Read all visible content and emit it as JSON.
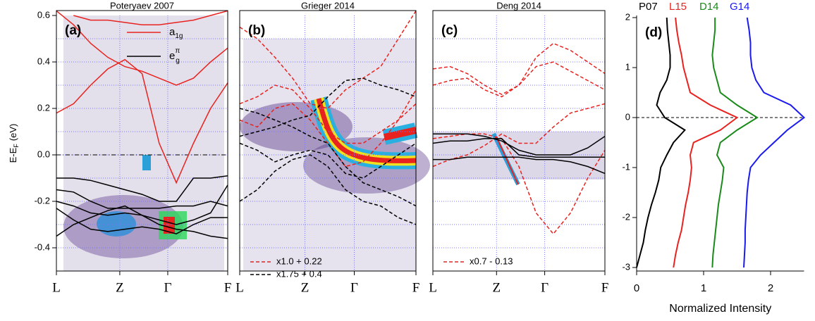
{
  "chart_data": [
    {
      "type": "line",
      "title": "Poteryaev 2007",
      "panel_label": "(a)",
      "ylabel": "E-E",
      "ylabel_sub": "F",
      "ylabel_unit": "(eV)",
      "xlim": [
        0,
        1
      ],
      "ylim": [
        -0.5,
        0.6
      ],
      "xticks": [
        {
          "value": 0,
          "label": "L"
        },
        {
          "value": 0.37,
          "label": "Z"
        },
        {
          "value": 0.65,
          "label": "Γ"
        },
        {
          "value": 1,
          "label": "F"
        }
      ],
      "yticks": [
        -0.4,
        -0.2,
        {
          "value": 0,
          "label": "0.0"
        },
        0.2,
        0.4,
        0.6
      ],
      "ygrid": [
        -0.4,
        -0.3,
        -0.2,
        -0.1,
        0,
        0.1,
        0.2,
        0.3,
        0.4,
        0.5
      ],
      "grid": true,
      "hline": 0,
      "x": [
        0,
        0.1,
        0.2,
        0.3,
        0.4,
        0.5,
        0.6,
        0.7,
        0.8,
        0.9,
        1
      ],
      "series": [
        {
          "name": "a",
          "name_sub": "1g",
          "color": "#e8231f",
          "dash": false,
          "values": [
            [
              0.18,
              0.22,
              0.3,
              0.37,
              0.41,
              0.35,
              0.05,
              -0.12,
              0.05,
              0.2,
              0.31
            ],
            [
              0.62,
              0.56,
              0.48,
              0.42,
              0.38,
              0.36,
              0.33,
              0.3,
              0.33,
              0.4,
              0.46
            ],
            [
              null,
              0.6,
              0.58,
              0.58,
              0.57,
              0.56,
              0.56,
              0.57,
              0.58,
              0.6,
              0.62
            ]
          ]
        },
        {
          "name": "e",
          "name_sub": "g",
          "name_sup": "π",
          "color": "#000000",
          "dash": false,
          "values": [
            [
              -0.1,
              -0.1,
              -0.11,
              -0.13,
              -0.15,
              -0.17,
              -0.2,
              -0.2,
              -0.1,
              -0.1,
              -0.09
            ],
            [
              -0.15,
              -0.16,
              -0.2,
              -0.23,
              -0.23,
              -0.23,
              -0.23,
              -0.22,
              -0.22,
              -0.2,
              -0.22
            ],
            [
              -0.2,
              -0.22,
              -0.25,
              -0.26,
              -0.25,
              -0.26,
              -0.28,
              -0.3,
              -0.28,
              -0.25,
              -0.13
            ],
            [
              -0.35,
              -0.3,
              -0.27,
              -0.24,
              -0.22,
              -0.26,
              -0.3,
              -0.32,
              -0.33,
              -0.35,
              -0.36
            ],
            [
              -0.23,
              -0.28,
              -0.32,
              -0.33,
              -0.32,
              -0.31,
              -0.32,
              -0.34,
              -0.3,
              -0.27,
              -0.27
            ]
          ]
        }
      ]
    },
    {
      "type": "line",
      "title": "Grieger 2014",
      "panel_label": "(b)",
      "xlim": [
        0,
        1
      ],
      "ylim": [
        -0.5,
        0.6
      ],
      "xticks": [
        {
          "value": 0,
          "label": "L"
        },
        {
          "value": 0.37,
          "label": "Z"
        },
        {
          "value": 0.65,
          "label": "Γ"
        },
        {
          "value": 1,
          "label": "F"
        }
      ],
      "ygrid": [
        -0.4,
        -0.3,
        -0.2,
        -0.1,
        0,
        0.1,
        0.2,
        0.3,
        0.4,
        0.5
      ],
      "grid": true,
      "x": [
        0,
        0.1,
        0.2,
        0.3,
        0.4,
        0.5,
        0.6,
        0.7,
        0.8,
        0.9,
        1
      ],
      "series": [
        {
          "name": "x1.0 + 0.22",
          "color": "#e8231f",
          "dash": true,
          "values": [
            [
              0.55,
              0.5,
              0.42,
              0.33,
              0.22,
              0.2,
              0.28,
              0.33,
              0.38,
              0.5,
              0.62
            ],
            [
              0.22,
              0.25,
              0.3,
              0.28,
              0.2,
              0.1,
              0.05,
              0.05,
              0.1,
              0.15,
              0.22
            ],
            [
              0.15,
              0.12,
              0.2,
              0.22,
              0.15,
              0.05,
              -0.05,
              -0.03,
              0.05,
              0.15,
              0.28
            ]
          ]
        },
        {
          "name": "x1.75 + 0.4",
          "color": "#000000",
          "dash": true,
          "values": [
            [
              0.08,
              0.1,
              0.12,
              0.15,
              0.17,
              0.25,
              0.32,
              0.33,
              0.3,
              0.28,
              0.25
            ],
            [
              0.05,
              0.02,
              -0.03,
              0,
              0.02,
              0,
              -0.08,
              -0.1,
              -0.05,
              0,
              0.05
            ],
            [
              -0.2,
              -0.15,
              -0.07,
              -0.02,
              0,
              -0.05,
              -0.15,
              -0.2,
              -0.22,
              -0.27,
              -0.3
            ],
            [
              0.2,
              0.18,
              0.15,
              0.12,
              0.08,
              0.05,
              -0.05,
              -0.12,
              -0.15,
              -0.18,
              -0.22
            ]
          ]
        }
      ]
    },
    {
      "type": "line",
      "title": "Deng 2014",
      "panel_label": "(c)",
      "xlim": [
        0,
        1
      ],
      "ylim": [
        -0.5,
        0.6
      ],
      "xticks": [
        {
          "value": 0,
          "label": "L"
        },
        {
          "value": 0.37,
          "label": "Z"
        },
        {
          "value": 0.65,
          "label": "Γ"
        },
        {
          "value": 1,
          "label": "F"
        }
      ],
      "ygrid": [
        -0.4,
        -0.3,
        -0.2,
        -0.1,
        0,
        0.1,
        0.2,
        0.3,
        0.4,
        0.5
      ],
      "grid": true,
      "x": [
        0,
        0.1,
        0.2,
        0.3,
        0.4,
        0.5,
        0.6,
        0.7,
        0.8,
        0.9,
        1
      ],
      "series": [
        {
          "name": "x0.7 - 0.13",
          "color": "#e8231f",
          "dash": true,
          "values": [
            [
              0.37,
              0.38,
              0.35,
              0.3,
              0.26,
              0.3,
              0.42,
              0.48,
              0.45,
              0.4,
              0.35
            ],
            [
              0.3,
              0.32,
              0.33,
              0.28,
              0.25,
              0.3,
              0.38,
              0.4,
              0.36,
              0.32,
              0.28
            ],
            [
              0.07,
              0.08,
              0.09,
              0.09,
              0.07,
              -0.05,
              -0.25,
              -0.34,
              -0.25,
              -0.1,
              0.02
            ],
            [
              -0.05,
              -0.02,
              0,
              0.04,
              0.09,
              0.05,
              0.05,
              0.12,
              0.18,
              0.2,
              0.22
            ]
          ]
        },
        {
          "color": "#000000",
          "dash": false,
          "values": [
            [
              0.09,
              0.09,
              0.09,
              0.08,
              0.06,
              0.02,
              0,
              0,
              0,
              0.03,
              0.08
            ],
            [
              0.05,
              0.06,
              0.06,
              0.07,
              0.07,
              0,
              -0.01,
              -0.01,
              -0.01,
              -0.01,
              -0.01
            ],
            [
              -0.02,
              -0.02,
              -0.01,
              -0.01,
              -0.01,
              -0.01,
              -0.02,
              -0.02,
              -0.03,
              -0.05,
              -0.08
            ]
          ]
        }
      ]
    },
    {
      "type": "line",
      "panel_label": "(d)",
      "xlabel": "Normalized Intensity",
      "xlim": [
        0,
        2.5
      ],
      "ylim": [
        -3,
        2
      ],
      "xticks": [
        0,
        1,
        2
      ],
      "yticks": [
        -3,
        -2,
        -1,
        0,
        1,
        2
      ],
      "grid": false,
      "hline": 0,
      "y": [
        -3,
        -2.75,
        -2.5,
        -2.25,
        -2,
        -1.75,
        -1.5,
        -1.25,
        -1,
        -0.75,
        -0.5,
        -0.25,
        0,
        0.25,
        0.5,
        0.75,
        1,
        1.25,
        1.5,
        1.75,
        2
      ],
      "series": [
        {
          "name": "P07",
          "color": "#000000",
          "x": [
            0,
            0.05,
            0.1,
            0.13,
            0.17,
            0.22,
            0.28,
            0.33,
            0.36,
            0.45,
            0.55,
            0.72,
            0.42,
            0.3,
            0.35,
            0.45,
            0.5,
            0.5,
            0.48,
            0.46,
            0.45
          ]
        },
        {
          "name": "L15",
          "color": "#e8231f",
          "x": [
            0.55,
            0.58,
            0.62,
            0.67,
            0.7,
            0.73,
            0.77,
            0.8,
            0.82,
            0.8,
            0.85,
            1.25,
            1.5,
            1.1,
            0.8,
            0.75,
            0.7,
            0.67,
            0.63,
            0.6,
            0.58
          ]
        },
        {
          "name": "D14",
          "color": "#1a8a1a",
          "x": [
            1.13,
            1.14,
            1.16,
            1.18,
            1.2,
            1.22,
            1.25,
            1.28,
            1.3,
            1.2,
            1.25,
            1.5,
            1.8,
            1.5,
            1.25,
            1.2,
            1.15,
            1.13,
            1.15,
            1.17,
            1.17
          ]
        },
        {
          "name": "G14",
          "color": "#1a1aee",
          "x": [
            1.6,
            1.61,
            1.62,
            1.62,
            1.63,
            1.64,
            1.65,
            1.67,
            1.7,
            1.85,
            2.05,
            2.25,
            2.5,
            2.3,
            1.9,
            1.78,
            1.72,
            1.7,
            1.7,
            1.68,
            1.65
          ]
        }
      ]
    }
  ]
}
